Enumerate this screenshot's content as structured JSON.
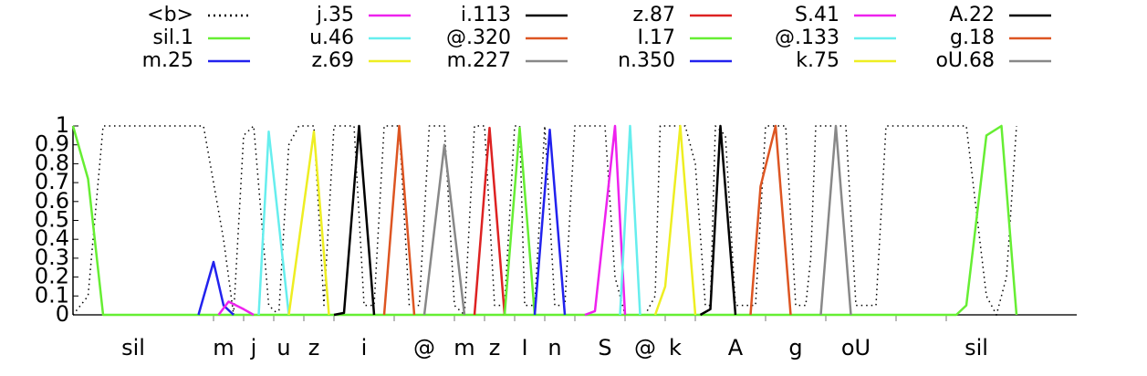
{
  "chart_data": {
    "type": "line",
    "title": "",
    "xlabel": "",
    "ylabel": "",
    "ylim": [
      0,
      1
    ],
    "y_ticks": [
      "0",
      "0.1",
      "0.2",
      "0.3",
      "0.4",
      "0.5",
      "0.6",
      "0.7",
      "0.8",
      "0.9",
      "1"
    ],
    "x_range": [
      0,
      100
    ],
    "grid": false,
    "legend_position": "top",
    "legend": [
      {
        "name": "<b>",
        "color": "#000000",
        "dash": "dotted"
      },
      {
        "name": "sil.1",
        "color": "#66ee33"
      },
      {
        "name": "m.25",
        "color": "#2222ee"
      },
      {
        "name": "j.35",
        "color": "#ee22ee"
      },
      {
        "name": "u.46",
        "color": "#66eeee"
      },
      {
        "name": "z.69",
        "color": "#eeee22"
      },
      {
        "name": "i.113",
        "color": "#000000"
      },
      {
        "name": "@.320",
        "color": "#dd5522"
      },
      {
        "name": "m.227",
        "color": "#888888"
      },
      {
        "name": "z.87",
        "color": "#dd2222"
      },
      {
        "name": "I.17",
        "color": "#66ee33"
      },
      {
        "name": "n.350",
        "color": "#2222ee"
      },
      {
        "name": "S.41",
        "color": "#ee22ee"
      },
      {
        "name": "@.133",
        "color": "#66eeee"
      },
      {
        "name": "k.75",
        "color": "#eeee22"
      },
      {
        "name": "A.22",
        "color": "#000000"
      },
      {
        "name": "g.18",
        "color": "#dd5522"
      },
      {
        "name": "oU.68",
        "color": "#888888"
      }
    ],
    "phone_labels": [
      {
        "label": "sil",
        "x": 6
      },
      {
        "label": "m",
        "x": 15
      },
      {
        "label": "j",
        "x": 18
      },
      {
        "label": "u",
        "x": 21
      },
      {
        "label": "z",
        "x": 24
      },
      {
        "label": "i",
        "x": 29
      },
      {
        "label": "@",
        "x": 35
      },
      {
        "label": "m",
        "x": 39
      },
      {
        "label": "z",
        "x": 42
      },
      {
        "label": "I",
        "x": 45
      },
      {
        "label": "n",
        "x": 48
      },
      {
        "label": "S",
        "x": 53
      },
      {
        "label": "@",
        "x": 57
      },
      {
        "label": "k",
        "x": 60
      },
      {
        "label": "A",
        "x": 66
      },
      {
        "label": "g",
        "x": 72
      },
      {
        "label": "oU",
        "x": 78
      },
      {
        "label": "sil",
        "x": 90
      }
    ],
    "boundaries": [
      14,
      17,
      20,
      23,
      26,
      32,
      38,
      41,
      44,
      47,
      50,
      55,
      59,
      62,
      69,
      75,
      82,
      87
    ],
    "series": [
      {
        "name": "<b>",
        "color": "#000000",
        "dash": "dotted",
        "points": [
          [
            0,
            0
          ],
          [
            1.5,
            0.1
          ],
          [
            3,
            1
          ],
          [
            13,
            1
          ],
          [
            15,
            0.4
          ],
          [
            16,
            0
          ],
          [
            17,
            0.95
          ],
          [
            18,
            1
          ],
          [
            19.5,
            0.05
          ],
          [
            20.5,
            0
          ],
          [
            21.5,
            0.9
          ],
          [
            22.5,
            1
          ],
          [
            24,
            1
          ],
          [
            25,
            0.05
          ],
          [
            26,
            1
          ],
          [
            28,
            1
          ],
          [
            29,
            0.05
          ],
          [
            30,
            0.05
          ],
          [
            31,
            1
          ],
          [
            32.5,
            1
          ],
          [
            33.5,
            0.05
          ],
          [
            34.5,
            0.05
          ],
          [
            35.5,
            1
          ],
          [
            37,
            1
          ],
          [
            38,
            0.05
          ],
          [
            39,
            0
          ],
          [
            40,
            1
          ],
          [
            41,
            1
          ],
          [
            42,
            0.05
          ],
          [
            43,
            0.05
          ],
          [
            44,
            1
          ],
          [
            44.5,
            1
          ],
          [
            45,
            0.05
          ],
          [
            46,
            0.05
          ],
          [
            47,
            1
          ],
          [
            48,
            0.05
          ],
          [
            49,
            0.05
          ],
          [
            50,
            1
          ],
          [
            53,
            1
          ],
          [
            54,
            0.2
          ],
          [
            55,
            0
          ],
          [
            57,
            0
          ],
          [
            58,
            0.1
          ],
          [
            58.5,
            1
          ],
          [
            61,
            1
          ],
          [
            62,
            0.8
          ],
          [
            63,
            0.05
          ],
          [
            63.5,
            0.05
          ],
          [
            64,
            1
          ],
          [
            65,
            0.95
          ],
          [
            66,
            0.05
          ],
          [
            68,
            0.05
          ],
          [
            69,
            1
          ],
          [
            71,
            1
          ],
          [
            72,
            0.05
          ],
          [
            73,
            0.05
          ],
          [
            73.5,
            0.3
          ],
          [
            74,
            1
          ],
          [
            77,
            1
          ],
          [
            78,
            0.05
          ],
          [
            80,
            0.05
          ],
          [
            81,
            1
          ],
          [
            87,
            1
          ],
          [
            89,
            1
          ],
          [
            91,
            0.1
          ],
          [
            92,
            0
          ],
          [
            93,
            0.2
          ],
          [
            94,
            1
          ]
        ]
      },
      {
        "name": "sil.1",
        "color": "#66ee33",
        "points": [
          [
            0,
            1
          ],
          [
            1.5,
            0.72
          ],
          [
            3,
            0
          ],
          [
            88,
            0
          ],
          [
            89,
            0.05
          ],
          [
            91,
            0.95
          ],
          [
            92.5,
            1
          ],
          [
            94,
            0
          ]
        ]
      },
      {
        "name": "m.25",
        "color": "#2222ee",
        "points": [
          [
            12.5,
            0
          ],
          [
            14,
            0.28
          ],
          [
            15,
            0.05
          ],
          [
            16,
            0
          ]
        ]
      },
      {
        "name": "j.35",
        "color": "#ee22ee",
        "points": [
          [
            14.5,
            0
          ],
          [
            15.5,
            0.07
          ],
          [
            17,
            0.03
          ],
          [
            18,
            0
          ]
        ]
      },
      {
        "name": "u.46",
        "color": "#66eeee",
        "points": [
          [
            18.5,
            0
          ],
          [
            19.5,
            0.97
          ],
          [
            21.5,
            0
          ]
        ]
      },
      {
        "name": "z.69",
        "color": "#eeee22",
        "points": [
          [
            21.5,
            0
          ],
          [
            24,
            0.97
          ],
          [
            25.5,
            0
          ]
        ]
      },
      {
        "name": "i.113",
        "color": "#000000",
        "points": [
          [
            26,
            0
          ],
          [
            27,
            0.01
          ],
          [
            28.5,
            1
          ],
          [
            30,
            0
          ]
        ]
      },
      {
        "name": "@.320",
        "color": "#dd5522",
        "points": [
          [
            31,
            0
          ],
          [
            32.5,
            1
          ],
          [
            34,
            0
          ]
        ]
      },
      {
        "name": "m.227",
        "color": "#888888",
        "points": [
          [
            35,
            0
          ],
          [
            37,
            0.9
          ],
          [
            39,
            0
          ]
        ]
      },
      {
        "name": "z.87",
        "color": "#dd2222",
        "points": [
          [
            40,
            0
          ],
          [
            41.5,
            0.99
          ],
          [
            43,
            0
          ]
        ]
      },
      {
        "name": "I.17",
        "color": "#66ee33",
        "points": [
          [
            43,
            0
          ],
          [
            44.5,
            0.99
          ],
          [
            46,
            0
          ]
        ]
      },
      {
        "name": "n.350",
        "color": "#2222ee",
        "points": [
          [
            46,
            0
          ],
          [
            47.5,
            0.98
          ],
          [
            49,
            0
          ]
        ]
      },
      {
        "name": "S.41",
        "color": "#ee22ee",
        "points": [
          [
            51,
            0
          ],
          [
            52,
            0.02
          ],
          [
            54,
            1
          ],
          [
            55,
            0
          ]
        ]
      },
      {
        "name": "@.133",
        "color": "#66eeee",
        "points": [
          [
            54.5,
            0
          ],
          [
            55.5,
            1
          ],
          [
            56.5,
            0
          ]
        ]
      },
      {
        "name": "k.75",
        "color": "#eeee22",
        "points": [
          [
            58,
            0
          ],
          [
            59,
            0.15
          ],
          [
            60.5,
            1
          ],
          [
            62,
            0
          ]
        ]
      },
      {
        "name": "A.22",
        "color": "#000000",
        "points": [
          [
            62.5,
            0
          ],
          [
            63.5,
            0.03
          ],
          [
            64.5,
            1
          ],
          [
            66,
            0
          ]
        ]
      },
      {
        "name": "g.18",
        "color": "#dd5522",
        "points": [
          [
            67.5,
            0
          ],
          [
            68.5,
            0.68
          ],
          [
            70,
            1
          ],
          [
            71.5,
            0
          ]
        ]
      },
      {
        "name": "oU.68",
        "color": "#888888",
        "points": [
          [
            74.5,
            0
          ],
          [
            76,
            1
          ],
          [
            77.5,
            0
          ]
        ]
      }
    ]
  }
}
